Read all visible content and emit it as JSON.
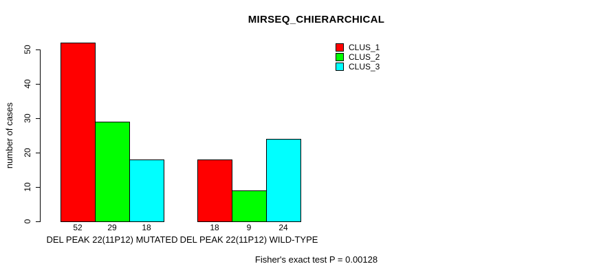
{
  "chart_data": {
    "type": "bar",
    "title": "MIRSEQ_CHIERARCHICAL",
    "ylabel": "number of cases",
    "xlabel": "",
    "ylim": [
      0,
      50
    ],
    "yticks": [
      0,
      10,
      20,
      30,
      40,
      50
    ],
    "categories": [
      "DEL PEAK 22(11P12) MUTATED",
      "DEL PEAK 22(11P12) WILD-TYPE"
    ],
    "series": [
      {
        "name": "CLUS_1",
        "color": "#FF0000",
        "values": [
          52,
          18
        ]
      },
      {
        "name": "CLUS_2",
        "color": "#00FF00",
        "values": [
          29,
          9
        ]
      },
      {
        "name": "CLUS_3",
        "color": "#00FFFF",
        "values": [
          18,
          24
        ]
      }
    ],
    "bar_value_labels": [
      [
        52,
        29,
        18
      ],
      [
        18,
        9,
        24
      ]
    ],
    "legend_position": "top-right",
    "grid": false,
    "footer": "Fisher's exact test P = 0.00128",
    "background_color": "#FFFFFF",
    "text_color": "#000000",
    "bar_border_color": "#000000"
  }
}
